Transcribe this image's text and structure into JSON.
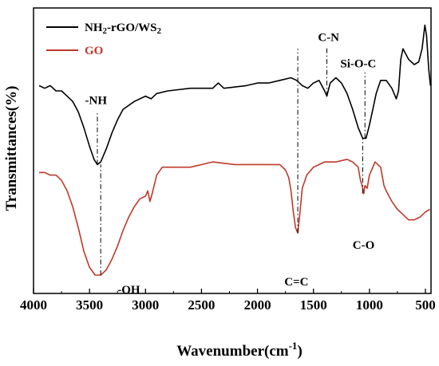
{
  "chart_data": {
    "type": "line",
    "xlabel": "Wavenumber(cm",
    "xlabel_sup": "-1",
    "xlabel_close": ")",
    "ylabel": "Transmittances(%)",
    "xlim": [
      4000,
      450
    ],
    "x_ticks": [
      4000,
      3500,
      3000,
      2500,
      2000,
      1500,
      1000,
      500
    ],
    "y_ticks": "none",
    "grid": false,
    "legend_position": "top-left",
    "series": [
      {
        "name_main": "NH",
        "name_sub1": "2",
        "name_mid": "-rGO/WS",
        "name_sub2": "2",
        "color": "#000000",
        "points": [
          [
            3950,
            0.72
          ],
          [
            3900,
            0.71
          ],
          [
            3850,
            0.72
          ],
          [
            3800,
            0.7
          ],
          [
            3750,
            0.7
          ],
          [
            3700,
            0.68
          ],
          [
            3650,
            0.66
          ],
          [
            3600,
            0.62
          ],
          [
            3550,
            0.56
          ],
          [
            3500,
            0.49
          ],
          [
            3460,
            0.44
          ],
          [
            3430,
            0.42
          ],
          [
            3400,
            0.43
          ],
          [
            3350,
            0.48
          ],
          [
            3300,
            0.54
          ],
          [
            3250,
            0.59
          ],
          [
            3200,
            0.63
          ],
          [
            3100,
            0.66
          ],
          [
            3000,
            0.68
          ],
          [
            2950,
            0.67
          ],
          [
            2900,
            0.69
          ],
          [
            2800,
            0.7
          ],
          [
            2600,
            0.71
          ],
          [
            2400,
            0.71
          ],
          [
            2350,
            0.73
          ],
          [
            2300,
            0.71
          ],
          [
            2100,
            0.72
          ],
          [
            2000,
            0.73
          ],
          [
            1900,
            0.73
          ],
          [
            1800,
            0.74
          ],
          [
            1700,
            0.75
          ],
          [
            1650,
            0.74
          ],
          [
            1600,
            0.72
          ],
          [
            1550,
            0.71
          ],
          [
            1500,
            0.73
          ],
          [
            1450,
            0.74
          ],
          [
            1400,
            0.7
          ],
          [
            1380,
            0.68
          ],
          [
            1350,
            0.73
          ],
          [
            1300,
            0.75
          ],
          [
            1250,
            0.73
          ],
          [
            1200,
            0.69
          ],
          [
            1150,
            0.63
          ],
          [
            1100,
            0.56
          ],
          [
            1060,
            0.52
          ],
          [
            1030,
            0.52
          ],
          [
            1000,
            0.57
          ],
          [
            970,
            0.63
          ],
          [
            940,
            0.69
          ],
          [
            900,
            0.74
          ],
          [
            850,
            0.74
          ],
          [
            800,
            0.71
          ],
          [
            760,
            0.67
          ],
          [
            740,
            0.7
          ],
          [
            720,
            0.82
          ],
          [
            700,
            0.86
          ],
          [
            650,
            0.82
          ],
          [
            600,
            0.8
          ],
          [
            560,
            0.81
          ],
          [
            530,
            0.86
          ],
          [
            505,
            0.95
          ],
          [
            490,
            0.91
          ],
          [
            470,
            0.78
          ],
          [
            455,
            0.72
          ]
        ]
      },
      {
        "name": "GO",
        "color": "#c0392b",
        "points": [
          [
            3950,
            0.39
          ],
          [
            3900,
            0.39
          ],
          [
            3850,
            0.38
          ],
          [
            3800,
            0.38
          ],
          [
            3750,
            0.36
          ],
          [
            3700,
            0.32
          ],
          [
            3650,
            0.26
          ],
          [
            3600,
            0.18
          ],
          [
            3550,
            0.09
          ],
          [
            3500,
            0.03
          ],
          [
            3450,
            0.0
          ],
          [
            3400,
            0.0
          ],
          [
            3350,
            0.02
          ],
          [
            3300,
            0.06
          ],
          [
            3250,
            0.11
          ],
          [
            3200,
            0.17
          ],
          [
            3150,
            0.22
          ],
          [
            3100,
            0.26
          ],
          [
            3050,
            0.29
          ],
          [
            3000,
            0.3
          ],
          [
            2980,
            0.32
          ],
          [
            2960,
            0.28
          ],
          [
            2940,
            0.31
          ],
          [
            2900,
            0.38
          ],
          [
            2850,
            0.41
          ],
          [
            2800,
            0.41
          ],
          [
            2600,
            0.41
          ],
          [
            2400,
            0.43
          ],
          [
            2200,
            0.42
          ],
          [
            2000,
            0.42
          ],
          [
            1900,
            0.42
          ],
          [
            1800,
            0.42
          ],
          [
            1750,
            0.4
          ],
          [
            1720,
            0.37
          ],
          [
            1700,
            0.32
          ],
          [
            1680,
            0.24
          ],
          [
            1660,
            0.18
          ],
          [
            1640,
            0.16
          ],
          [
            1620,
            0.24
          ],
          [
            1600,
            0.33
          ],
          [
            1560,
            0.38
          ],
          [
            1500,
            0.41
          ],
          [
            1450,
            0.42
          ],
          [
            1400,
            0.43
          ],
          [
            1300,
            0.43
          ],
          [
            1200,
            0.44
          ],
          [
            1150,
            0.43
          ],
          [
            1100,
            0.41
          ],
          [
            1080,
            0.36
          ],
          [
            1065,
            0.34
          ],
          [
            1050,
            0.31
          ],
          [
            1040,
            0.34
          ],
          [
            1020,
            0.33
          ],
          [
            1000,
            0.38
          ],
          [
            980,
            0.4
          ],
          [
            950,
            0.43
          ],
          [
            900,
            0.41
          ],
          [
            870,
            0.34
          ],
          [
            850,
            0.32
          ],
          [
            800,
            0.28
          ],
          [
            750,
            0.25
          ],
          [
            700,
            0.23
          ],
          [
            650,
            0.21
          ],
          [
            600,
            0.21
          ],
          [
            550,
            0.22
          ],
          [
            500,
            0.24
          ],
          [
            460,
            0.25
          ]
        ]
      }
    ],
    "annotations": [
      {
        "text": "-NH",
        "x": 3430,
        "y": 0.42,
        "line_to": 0.62,
        "label_x": 3540,
        "label_y": 0.65
      },
      {
        "text": "-OH",
        "x": 3400,
        "y": 0.0,
        "line_to": 0.42,
        "label_x": 3250,
        "label_y": -0.07
      },
      {
        "text": "C=C",
        "x": 1640,
        "y": 0.16,
        "line_to": 0.86,
        "label_x": 1760,
        "label_y": -0.04
      },
      {
        "text": "C-N",
        "x": 1380,
        "y": 0.68,
        "line_to": 0.87,
        "label_x": 1460,
        "label_y": 0.89
      },
      {
        "text": "Si-O-C",
        "x": 1040,
        "y": 0.52,
        "line_to": 0.77,
        "label_x": 1260,
        "label_y": 0.79
      },
      {
        "text": "C-O",
        "x": 1060,
        "y": 0.31,
        "line_to": 0.52,
        "label_x": 1150,
        "label_y": 0.1
      }
    ]
  }
}
